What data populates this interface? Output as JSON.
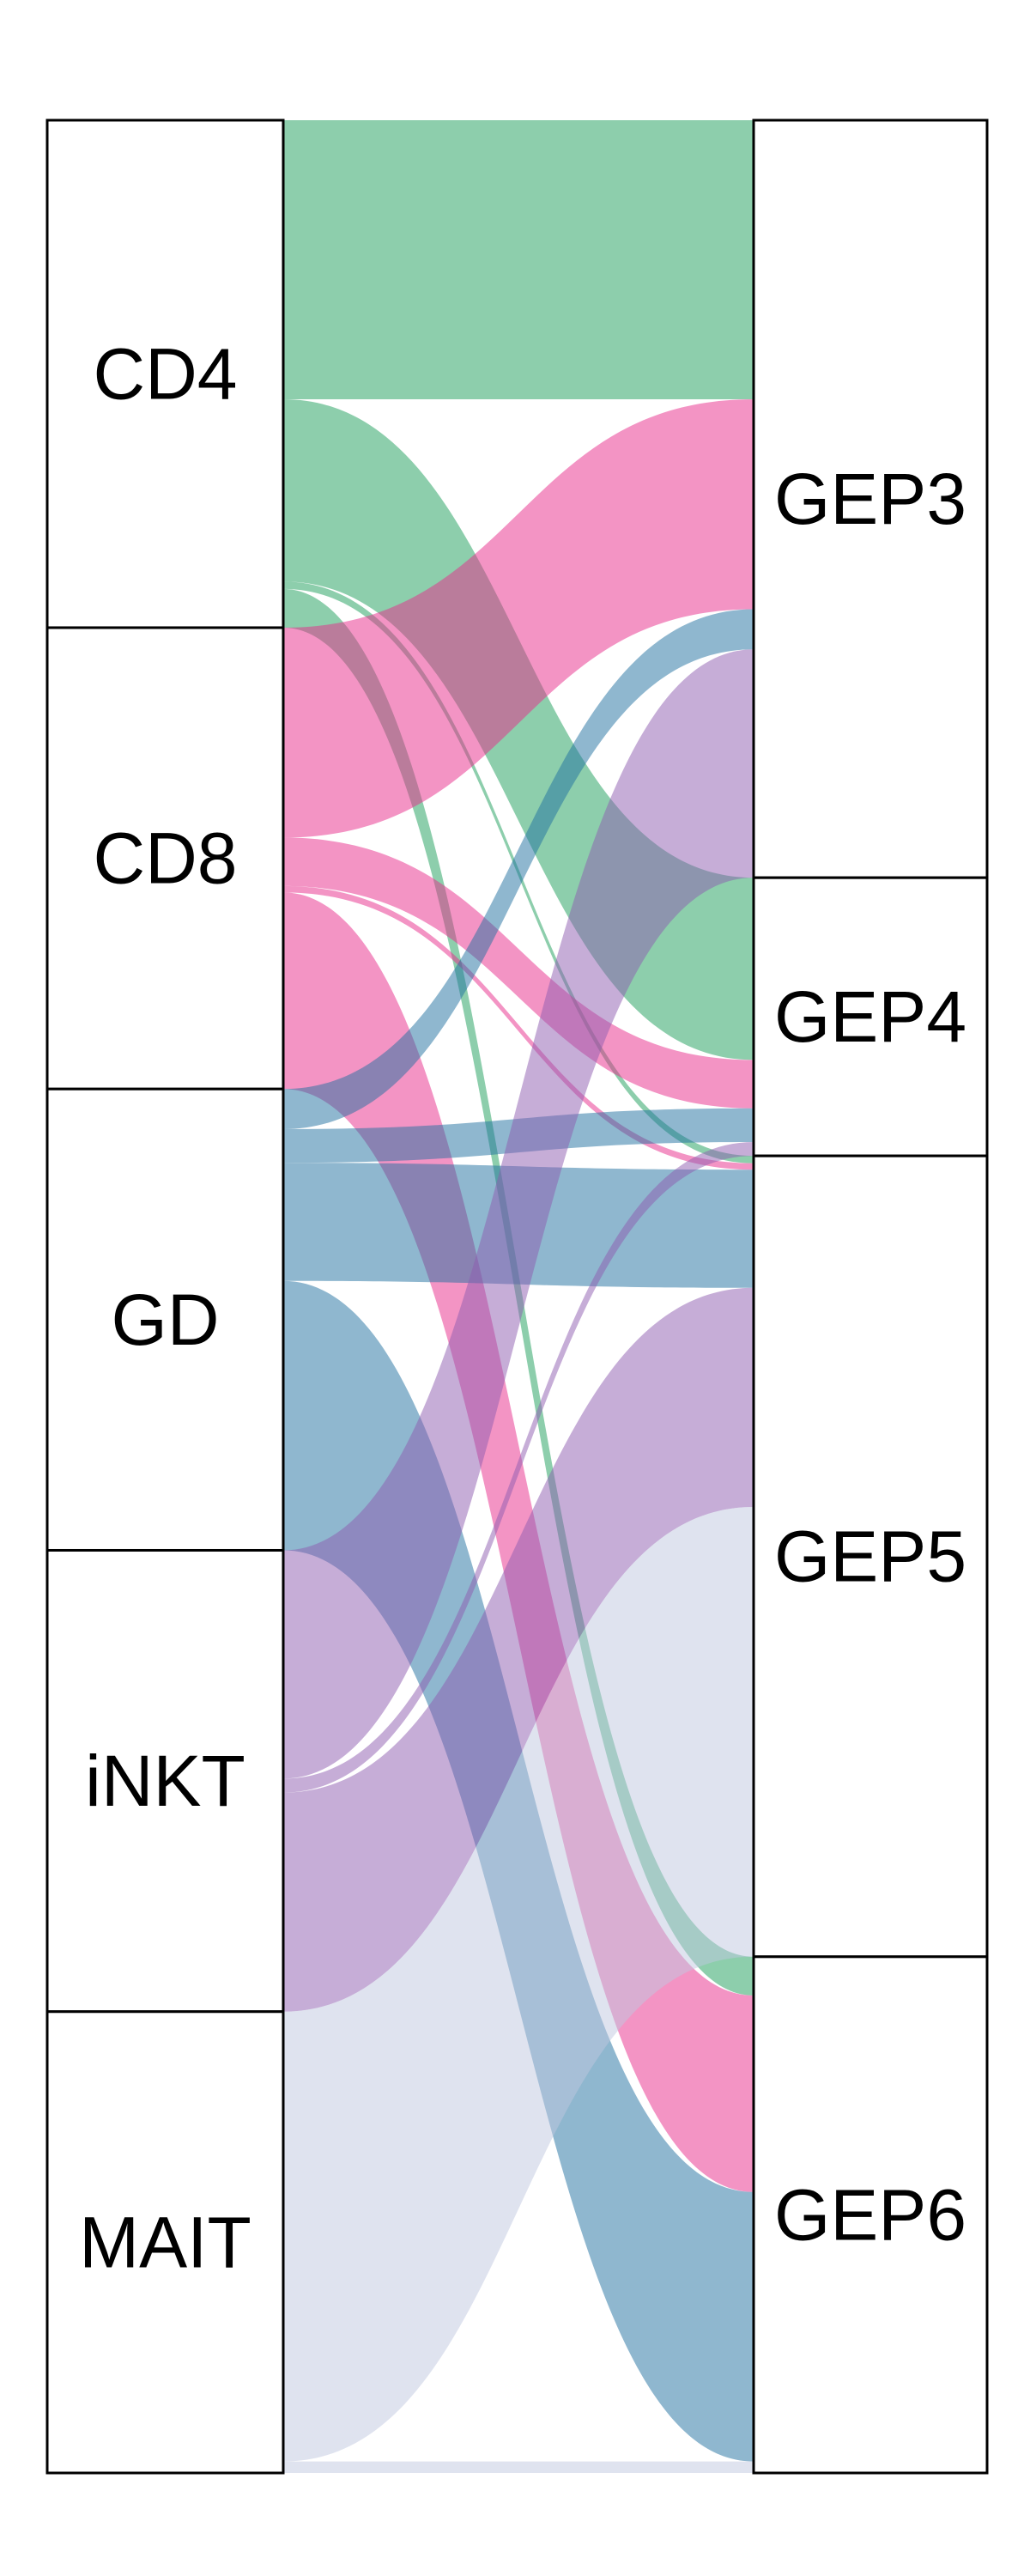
{
  "chart_data": {
    "type": "alluvial",
    "left_axis": [
      "CD4",
      "CD8",
      "GD",
      "iNKT",
      "MAIT"
    ],
    "right_axis": [
      "GEP3",
      "GEP4",
      "GEP5",
      "GEP6"
    ],
    "colors": {
      "CD4": "#1b9e5a",
      "CD8": "#e7298a",
      "GD": "#1f6f9f",
      "iNKT": "#8e5bb0",
      "MAIT": "#bfc7e0"
    },
    "flows": [
      {
        "from": "CD4",
        "to": "GEP3",
        "value": 0.605
      },
      {
        "from": "CD4",
        "to": "GEP4",
        "value": 0.395
      },
      {
        "from": "CD4",
        "to": "GEP5",
        "value": 0.016
      },
      {
        "from": "CD4",
        "to": "GEP6",
        "value": 0.084
      },
      {
        "from": "CD8",
        "to": "GEP3",
        "value": 0.455
      },
      {
        "from": "CD8",
        "to": "GEP4",
        "value": 0.105
      },
      {
        "from": "CD8",
        "to": "GEP5",
        "value": 0.014
      },
      {
        "from": "CD8",
        "to": "GEP6",
        "value": 0.426
      },
      {
        "from": "GD",
        "to": "GEP3",
        "value": 0.087
      },
      {
        "from": "GD",
        "to": "GEP4",
        "value": 0.073
      },
      {
        "from": "GD",
        "to": "GEP5",
        "value": 0.256
      },
      {
        "from": "GD",
        "to": "GEP6",
        "value": 0.584
      },
      {
        "from": "iNKT",
        "to": "GEP3",
        "value": 0.495
      },
      {
        "from": "iNKT",
        "to": "GEP4",
        "value": 0.03
      },
      {
        "from": "iNKT",
        "to": "GEP5",
        "value": 0.475
      },
      {
        "from": "MAIT",
        "to": "GEP3",
        "value": 0.0
      },
      {
        "from": "MAIT",
        "to": "GEP5",
        "value": 0.975
      },
      {
        "from": "MAIT",
        "to": "GEP6",
        "value": 0.025
      }
    ]
  }
}
